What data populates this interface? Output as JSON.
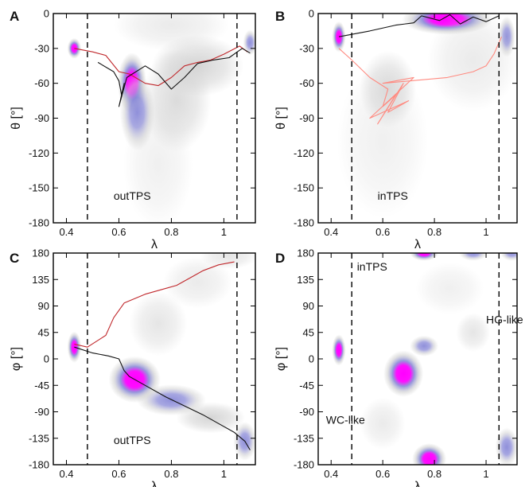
{
  "figure": {
    "colors": {
      "density_low": "#d0d0d0",
      "density_mid": "#8a8ad8",
      "density_high": "#ff00ff",
      "traj_red": "#c0282c",
      "traj_black": "#111111",
      "traj_salmon": "#ff8a80"
    }
  },
  "chart_data": [
    {
      "panel_letter": "A",
      "type": "heatmap",
      "xlabel": "λ",
      "ylabel": "θ [°]",
      "xlim": [
        0.35,
        1.12
      ],
      "ylim": [
        -180,
        0
      ],
      "xticks": [
        0.4,
        0.6,
        0.8,
        1
      ],
      "xtick_labels": [
        "0.4",
        "0.6",
        "0.8",
        "1"
      ],
      "yticks": [
        0,
        -30,
        -60,
        -90,
        -120,
        -150,
        -180
      ],
      "ytick_labels": [
        "0",
        "-30",
        "-60",
        "-90",
        "-120",
        "-150",
        "-180"
      ],
      "dashed_lines_x": [
        0.48,
        1.05
      ],
      "annotations": [
        {
          "text": "outTPS",
          "x": 0.58,
          "y": -160
        }
      ],
      "density_blobs": [
        {
          "x": 0.43,
          "y": -30,
          "sx": 0.012,
          "sy": 4,
          "peak": 0.8
        },
        {
          "x": 0.65,
          "y": -60,
          "sx": 0.025,
          "sy": 12,
          "peak": 1.0
        },
        {
          "x": 0.67,
          "y": -85,
          "sx": 0.03,
          "sy": 15,
          "peak": 0.7
        },
        {
          "x": 0.9,
          "y": -45,
          "sx": 0.08,
          "sy": 12,
          "peak": 0.45
        },
        {
          "x": 0.82,
          "y": -75,
          "sx": 0.06,
          "sy": 20,
          "peak": 0.35
        },
        {
          "x": 1.1,
          "y": -25,
          "sx": 0.012,
          "sy": 5,
          "peak": 0.75
        },
        {
          "x": 0.75,
          "y": -130,
          "sx": 0.06,
          "sy": 25,
          "peak": 0.15
        },
        {
          "x": 0.8,
          "y": -10,
          "sx": 0.1,
          "sy": 10,
          "peak": 0.2
        }
      ],
      "trajectories": [
        {
          "color_key": "traj_red",
          "points": [
            [
              0.43,
              -30
            ],
            [
              0.5,
              -33
            ],
            [
              0.55,
              -36
            ],
            [
              0.6,
              -50
            ],
            [
              0.64,
              -52
            ],
            [
              0.7,
              -60
            ],
            [
              0.75,
              -62
            ],
            [
              0.8,
              -55
            ],
            [
              0.85,
              -45
            ],
            [
              0.9,
              -42
            ],
            [
              0.95,
              -40
            ],
            [
              1.0,
              -35
            ],
            [
              1.06,
              -28
            ],
            [
              1.09,
              -33
            ]
          ]
        },
        {
          "color_key": "traj_black",
          "points": [
            [
              0.52,
              -42
            ],
            [
              0.58,
              -50
            ],
            [
              0.6,
              -58
            ],
            [
              0.61,
              -70
            ],
            [
              0.62,
              -60
            ],
            [
              0.6,
              -80
            ],
            [
              0.63,
              -55
            ],
            [
              0.7,
              -45
            ],
            [
              0.75,
              -52
            ],
            [
              0.8,
              -65
            ],
            [
              0.85,
              -55
            ],
            [
              0.9,
              -43
            ],
            [
              0.96,
              -40
            ],
            [
              1.02,
              -38
            ],
            [
              1.07,
              -30
            ],
            [
              1.1,
              -34
            ]
          ]
        }
      ]
    },
    {
      "panel_letter": "B",
      "type": "heatmap",
      "xlabel": "λ",
      "ylabel": "θ [°]",
      "xlim": [
        0.35,
        1.12
      ],
      "ylim": [
        -180,
        0
      ],
      "xticks": [
        0.4,
        0.6,
        0.8,
        1
      ],
      "xtick_labels": [
        "0.4",
        "0.6",
        "0.8",
        "1"
      ],
      "yticks": [
        0,
        -30,
        -60,
        -90,
        -120,
        -150,
        -180
      ],
      "ytick_labels": [
        "0",
        "-30",
        "-60",
        "-90",
        "-120",
        "-150",
        "-180"
      ],
      "dashed_lines_x": [
        0.48,
        1.05
      ],
      "annotations": [
        {
          "text": "inTPS",
          "x": 0.58,
          "y": -160
        }
      ],
      "density_blobs": [
        {
          "x": 0.43,
          "y": -20,
          "sx": 0.012,
          "sy": 6,
          "peak": 0.85
        },
        {
          "x": 0.85,
          "y": -5,
          "sx": 0.08,
          "sy": 6,
          "peak": 0.9
        },
        {
          "x": 1.08,
          "y": -20,
          "sx": 0.015,
          "sy": 8,
          "peak": 0.6
        },
        {
          "x": 0.62,
          "y": -65,
          "sx": 0.05,
          "sy": 15,
          "peak": 0.35
        },
        {
          "x": 0.6,
          "y": -110,
          "sx": 0.08,
          "sy": 30,
          "peak": 0.15
        },
        {
          "x": 0.95,
          "y": -40,
          "sx": 0.08,
          "sy": 20,
          "peak": 0.2
        }
      ],
      "trajectories": [
        {
          "color_key": "traj_salmon",
          "points": [
            [
              0.43,
              -30
            ],
            [
              0.48,
              -40
            ],
            [
              0.55,
              -55
            ],
            [
              0.62,
              -65
            ],
            [
              0.6,
              -80
            ],
            [
              0.65,
              -70
            ],
            [
              0.58,
              -95
            ],
            [
              0.68,
              -60
            ],
            [
              0.62,
              -85
            ],
            [
              0.7,
              -75
            ],
            [
              0.55,
              -90
            ],
            [
              0.72,
              -55
            ],
            [
              0.6,
              -60
            ],
            [
              0.85,
              -55
            ],
            [
              0.95,
              -50
            ],
            [
              1.0,
              -45
            ],
            [
              1.03,
              -35
            ],
            [
              1.06,
              -20
            ]
          ]
        },
        {
          "color_key": "traj_black",
          "points": [
            [
              0.43,
              -20
            ],
            [
              0.55,
              -15
            ],
            [
              0.65,
              -10
            ],
            [
              0.72,
              -8
            ],
            [
              0.75,
              -2
            ],
            [
              0.82,
              -6
            ],
            [
              0.86,
              -1
            ],
            [
              0.9,
              -9
            ],
            [
              0.95,
              -3
            ],
            [
              1.0,
              -7
            ],
            [
              1.05,
              -2
            ]
          ]
        }
      ]
    },
    {
      "panel_letter": "C",
      "type": "heatmap",
      "xlabel": "λ",
      "ylabel": "φ [°]",
      "xlim": [
        0.35,
        1.12
      ],
      "ylim": [
        -180,
        180
      ],
      "xticks": [
        0.4,
        0.6,
        0.8,
        1
      ],
      "xtick_labels": [
        "0.4",
        "0.6",
        "0.8",
        "1"
      ],
      "yticks": [
        180,
        135,
        90,
        45,
        0,
        -45,
        -90,
        -135,
        -180
      ],
      "ytick_labels": [
        "180",
        "135",
        "90",
        "45",
        "0",
        "-45",
        "-90",
        "-135",
        "-180"
      ],
      "dashed_lines_x": [
        0.48,
        1.05
      ],
      "annotations": [
        {
          "text": "outTPS",
          "x": 0.58,
          "y": -145
        }
      ],
      "density_blobs": [
        {
          "x": 0.43,
          "y": 20,
          "sx": 0.012,
          "sy": 12,
          "peak": 0.8
        },
        {
          "x": 0.66,
          "y": -35,
          "sx": 0.045,
          "sy": 18,
          "peak": 0.95
        },
        {
          "x": 0.8,
          "y": -70,
          "sx": 0.06,
          "sy": 12,
          "peak": 0.5
        },
        {
          "x": 0.95,
          "y": -100,
          "sx": 0.06,
          "sy": 12,
          "peak": 0.45
        },
        {
          "x": 1.08,
          "y": -140,
          "sx": 0.02,
          "sy": 15,
          "peak": 0.6
        },
        {
          "x": 0.75,
          "y": 60,
          "sx": 0.05,
          "sy": 25,
          "peak": 0.25
        },
        {
          "x": 0.9,
          "y": 130,
          "sx": 0.06,
          "sy": 20,
          "peak": 0.2
        },
        {
          "x": 1.02,
          "y": 175,
          "sx": 0.05,
          "sy": 10,
          "peak": 0.25
        }
      ],
      "trajectories": [
        {
          "color_key": "traj_red",
          "points": [
            [
              0.43,
              25
            ],
            [
              0.48,
              20
            ],
            [
              0.55,
              40
            ],
            [
              0.58,
              70
            ],
            [
              0.62,
              95
            ],
            [
              0.7,
              110
            ],
            [
              0.78,
              120
            ],
            [
              0.82,
              125
            ],
            [
              0.88,
              140
            ],
            [
              0.92,
              150
            ],
            [
              0.98,
              160
            ],
            [
              1.04,
              165
            ]
          ]
        },
        {
          "color_key": "traj_black",
          "points": [
            [
              0.43,
              20
            ],
            [
              0.5,
              10
            ],
            [
              0.56,
              5
            ],
            [
              0.6,
              0
            ],
            [
              0.62,
              -20
            ],
            [
              0.64,
              -30
            ],
            [
              0.7,
              -45
            ],
            [
              0.78,
              -65
            ],
            [
              0.85,
              -80
            ],
            [
              0.92,
              -95
            ],
            [
              0.98,
              -110
            ],
            [
              1.04,
              -125
            ],
            [
              1.08,
              -140
            ],
            [
              1.1,
              -155
            ]
          ]
        }
      ]
    },
    {
      "panel_letter": "D",
      "type": "heatmap",
      "xlabel": "λ",
      "ylabel": "φ [°]",
      "xlim": [
        0.35,
        1.12
      ],
      "ylim": [
        -180,
        180
      ],
      "xticks": [
        0.4,
        0.6,
        0.8,
        1
      ],
      "xtick_labels": [
        "0.4",
        "0.6",
        "0.8",
        "1"
      ],
      "yticks": [
        180,
        135,
        90,
        45,
        0,
        -45,
        -90,
        -135,
        -180
      ],
      "ytick_labels": [
        "180",
        "135",
        "90",
        "45",
        "0",
        "-45",
        "-90",
        "-135",
        "-180"
      ],
      "dashed_lines_x": [
        0.48,
        1.05
      ],
      "annotations": [
        {
          "text": "inTPS",
          "x": 0.5,
          "y": 150
        },
        {
          "text": "HG-like",
          "x": 1.0,
          "y": 60
        },
        {
          "text": "WC-like",
          "x": 0.38,
          "y": -110
        }
      ],
      "density_blobs": [
        {
          "x": 0.43,
          "y": 15,
          "sx": 0.012,
          "sy": 12,
          "peak": 0.85
        },
        {
          "x": 0.68,
          "y": -25,
          "sx": 0.035,
          "sy": 18,
          "peak": 1.0
        },
        {
          "x": 0.76,
          "y": 22,
          "sx": 0.025,
          "sy": 8,
          "peak": 0.75
        },
        {
          "x": 0.78,
          "y": -170,
          "sx": 0.03,
          "sy": 12,
          "peak": 0.95
        },
        {
          "x": 0.76,
          "y": 180,
          "sx": 0.025,
          "sy": 6,
          "peak": 0.8
        },
        {
          "x": 0.95,
          "y": 180,
          "sx": 0.025,
          "sy": 6,
          "peak": 0.75
        },
        {
          "x": 1.1,
          "y": 180,
          "sx": 0.02,
          "sy": 6,
          "peak": 0.7
        },
        {
          "x": 1.08,
          "y": -150,
          "sx": 0.02,
          "sy": 15,
          "peak": 0.6
        },
        {
          "x": 0.95,
          "y": 45,
          "sx": 0.03,
          "sy": 15,
          "peak": 0.25
        },
        {
          "x": 0.6,
          "y": -110,
          "sx": 0.04,
          "sy": 20,
          "peak": 0.2
        },
        {
          "x": 0.86,
          "y": 120,
          "sx": 0.06,
          "sy": 20,
          "peak": 0.15
        }
      ],
      "trajectories": []
    }
  ]
}
